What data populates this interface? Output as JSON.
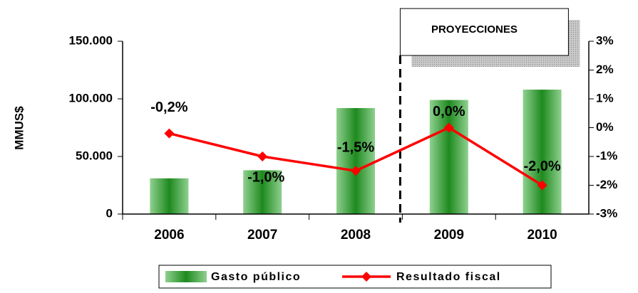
{
  "chart_data": {
    "type": "bar-line",
    "y_label": "MMUS$",
    "annotation": "PROYECCIONES",
    "categories": [
      "2006",
      "2007",
      "2008",
      "2009",
      "2010"
    ],
    "series": [
      {
        "name": "Gasto público",
        "type": "bar",
        "color": "#3a9a3a",
        "values": [
          31000,
          38000,
          92000,
          99000,
          108000
        ]
      },
      {
        "name": "Resultado fiscal",
        "type": "line",
        "axis": "y2",
        "color": "#ff0000",
        "values": [
          -0.2,
          -1.0,
          -1.5,
          0.0,
          -2.0
        ],
        "value_labels": [
          "-0,2%",
          "-1,0%",
          "-1,5%",
          "0,0%",
          "-2,0%"
        ]
      }
    ],
    "ylim": [
      0,
      150000
    ],
    "yticks": [
      0,
      {
        "value": 50000,
        "label": "50.000"
      },
      {
        "value": 100000,
        "label": "100.000"
      },
      {
        "value": 150000,
        "label": "150.000"
      }
    ],
    "y2lim": [
      -3,
      3
    ],
    "y2ticks": [
      {
        "value": -3,
        "label": "-3%"
      },
      {
        "value": -2,
        "label": "-2%"
      },
      {
        "value": -1,
        "label": "-1%"
      },
      {
        "value": 0,
        "label": "0%"
      },
      {
        "value": 1,
        "label": "1%"
      },
      {
        "value": 2,
        "label": "2%"
      },
      {
        "value": 3,
        "label": "3%"
      }
    ],
    "legend": "bottom",
    "grid": false
  }
}
